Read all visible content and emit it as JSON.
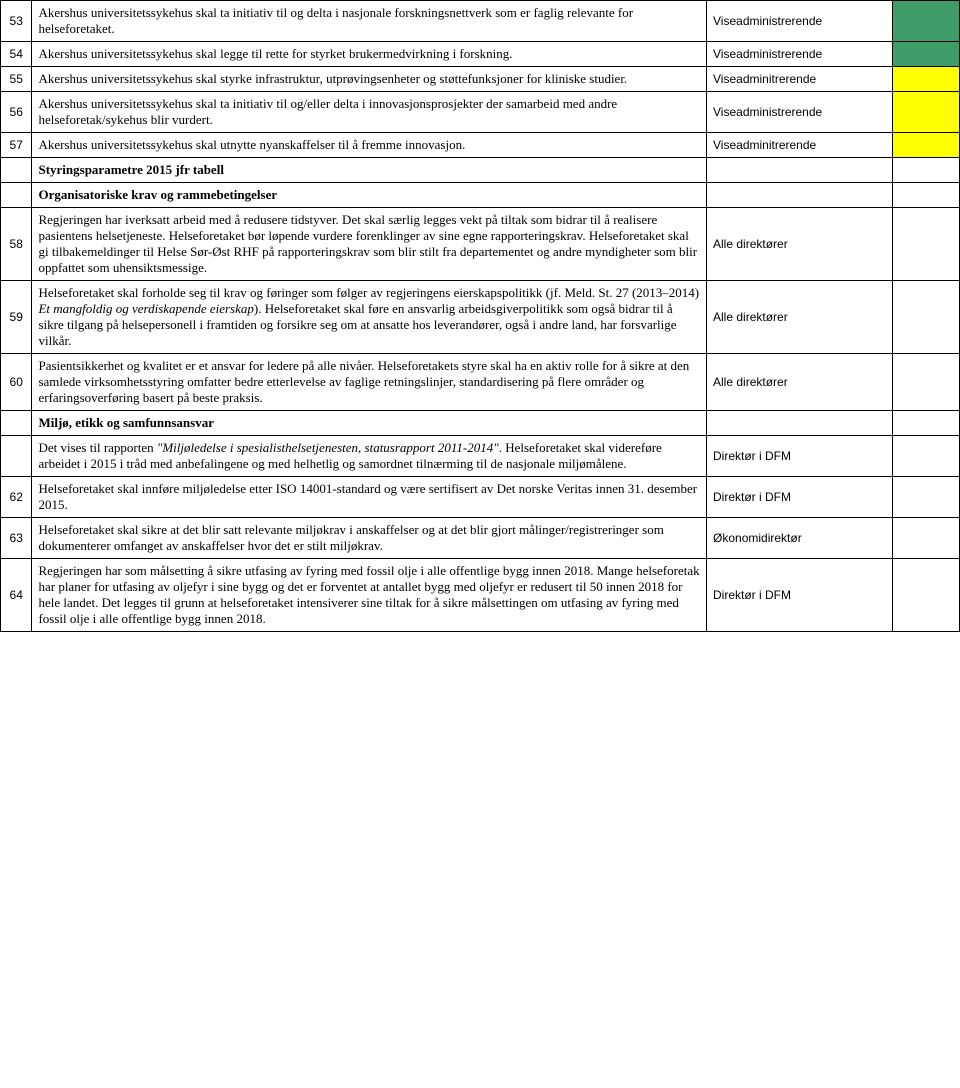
{
  "colors": {
    "green": "#3f9b68",
    "yellow": "#ffff00",
    "white": "#ffffff"
  },
  "rows": [
    {
      "num": "53",
      "desc": "Akershus universitetssykehus skal ta initiativ til og delta i nasjonale forskningsnettverk som er faglig relevante for helseforetaket.",
      "resp": "Viseadministrerende",
      "status": "green"
    },
    {
      "num": "54",
      "desc": "Akershus universitetssykehus skal legge til rette for styrket brukermedvirkning i forskning.",
      "resp": "Viseadministrerende",
      "status": "green"
    },
    {
      "num": "55",
      "desc": "Akershus universitetssykehus skal styrke infrastruktur, utprøvingsenheter og støttefunksjoner for kliniske studier.",
      "resp": "Viseadminitrerende",
      "status": "yellow"
    },
    {
      "num": "56",
      "desc": "Akershus universitetssykehus skal ta initiativ til og/eller delta i innovasjonsprosjekter der samarbeid med andre helseforetak/sykehus blir vurdert.",
      "resp": "Viseadministrerende",
      "status": "yellow"
    },
    {
      "num": "57",
      "desc": "Akershus universitetssykehus skal utnytte nyanskaffelser til å fremme innovasjon.",
      "resp": "Viseadminitrerende",
      "status": "yellow"
    },
    {
      "num": "",
      "desc": "Styringsparametre 2015 jfr tabell",
      "resp": "",
      "status": "",
      "header": true
    },
    {
      "num": "",
      "desc": "Organisatoriske krav og rammebetingelser",
      "resp": "",
      "status": "",
      "header": true
    },
    {
      "num": "58",
      "desc": "Regjeringen har iverksatt arbeid med å redusere tidstyver. Det skal særlig legges vekt på tiltak som bidrar til å realisere pasientens helsetjeneste. Helseforetaket bør løpende vurdere forenklinger av sine egne rapporteringskrav. Helseforetaket skal gi tilbakemeldinger til Helse Sør-Øst RHF på rapporteringskrav som blir stilt fra departementet og andre myndigheter som blir oppfattet som uhensiktsmessige.",
      "resp": "Alle direktører",
      "status": ""
    },
    {
      "num": "59",
      "desc": "Helseforetaket skal forholde seg til krav og føringer som følger av regjeringens eierskapspolitikk (jf. Meld. St. 27 (2013–2014) Et mangfoldig og verdiskapende eierskap). Helseforetaket skal føre en ansvarlig arbeidsgiverpolitikk som også bidrar til å sikre tilgang på helsepersonell i framtiden og forsikre seg om at ansatte hos leverandører, også i andre land, har forsvarlige vilkår.",
      "resp": "Alle direktører",
      "status": "",
      "italic_part": true
    },
    {
      "num": "60",
      "desc": "Pasientsikkerhet og kvalitet er et ansvar for ledere på alle nivåer. Helseforetakets styre skal ha en aktiv rolle for å sikre at den samlede virksomhetsstyring omfatter bedre etterlevelse av faglige retningslinjer, standardisering på flere områder og erfaringsoverføring basert på beste praksis.",
      "resp": "Alle direktører",
      "status": ""
    },
    {
      "num": "",
      "desc": "Miljø, etikk og samfunnsansvar",
      "resp": "",
      "status": "",
      "header": true
    },
    {
      "num": "",
      "desc": "Det vises til rapporten \"Miljøledelse i spesialisthelsetjenesten, statusrapport 2011-2014\". Helseforetaket skal videreføre arbeidet i 2015 i tråd med anbefalingene og med helhetlig og samordnet tilnærming til de nasjonale miljømålene.",
      "resp": "Direktør i DFM",
      "status": "",
      "italic_quote": true
    },
    {
      "num": "62",
      "desc": "Helseforetaket skal innføre miljøledelse etter ISO 14001-standard og være sertifisert av Det norske Veritas innen 31. desember 2015.",
      "resp": "Direktør i DFM",
      "status": ""
    },
    {
      "num": "63",
      "desc": "Helseforetaket skal sikre at det blir satt relevante miljøkrav i anskaffelser og at det blir gjort målinger/registreringer som dokumenterer omfanget av anskaffelser hvor det er stilt miljøkrav.",
      "resp": "Økonomidirektør",
      "status": ""
    },
    {
      "num": "64",
      "desc": "Regjeringen har som målsetting å sikre utfasing av fyring med fossil olje i alle offentlige bygg innen 2018. Mange helseforetak har planer for utfasing av oljefyr i sine bygg og det er forventet at antallet bygg med oljefyr er redusert til 50 innen 2018 for hele landet. Det legges til grunn at helseforetaket intensiverer sine tiltak for å sikre målsettingen om utfasing av fyring med fossil olje i alle offentlige bygg innen 2018.",
      "resp": "Direktør i DFM",
      "status": ""
    }
  ]
}
